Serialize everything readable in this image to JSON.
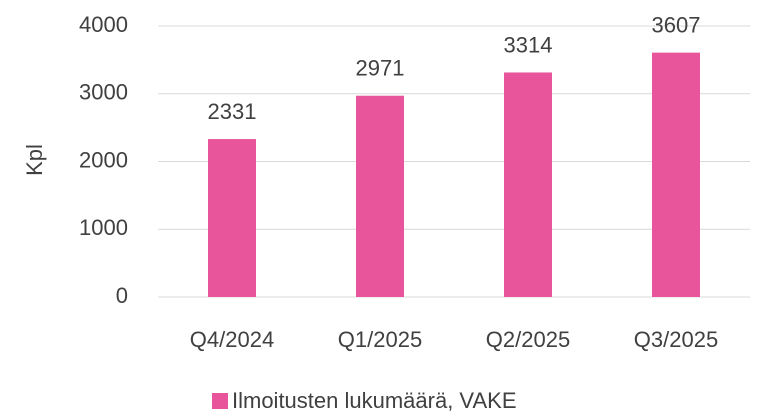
{
  "chart_data": {
    "type": "bar",
    "y_label": "Kpl",
    "categories": [
      "Q4/2024",
      "Q1/2025",
      "Q2/2025",
      "Q3/2025"
    ],
    "series": [
      {
        "name": "Ilmoitusten lukumäärä, VAKE",
        "color": "#e8559a",
        "values": [
          2331,
          2971,
          3314,
          3607
        ]
      }
    ],
    "ylim": [
      0,
      4000
    ],
    "yticks": [
      0,
      1000,
      2000,
      3000,
      4000
    ],
    "grid": true,
    "legend": "bottom"
  }
}
